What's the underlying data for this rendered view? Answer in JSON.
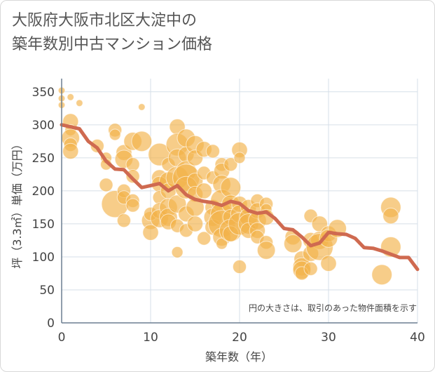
{
  "title": {
    "line1": "大阪府大阪市北区大淀中の",
    "line2": "築年数別中古マンション価格"
  },
  "chart_data": {
    "type": "scatter",
    "xlabel": "築年数（年）",
    "ylabel": "坪（3.3㎡）単価（万円）",
    "xlim": [
      0,
      40
    ],
    "ylim": [
      0,
      370
    ],
    "xticks": [
      0,
      10,
      20,
      30,
      40
    ],
    "yticks": [
      0,
      50,
      100,
      150,
      200,
      250,
      300,
      350
    ],
    "grid": true,
    "note": "円の大きさは、取引のあった物件面積を示す",
    "colors": {
      "bubble": "#f2b24a",
      "line": "#cf6a50",
      "axis": "#6b7f90",
      "grid": "#d6dfe8"
    },
    "points": [
      [
        0,
        352,
        1.5
      ],
      [
        0,
        340,
        1.5
      ],
      [
        0,
        330,
        1.5
      ],
      [
        1,
        342,
        1.5
      ],
      [
        2,
        333,
        1.5
      ],
      [
        1,
        305,
        3.5
      ],
      [
        1,
        292,
        2.5
      ],
      [
        1,
        280,
        4
      ],
      [
        1,
        270,
        3
      ],
      [
        1,
        260,
        3.5
      ],
      [
        4,
        268,
        3
      ],
      [
        5,
        250,
        2.5
      ],
      [
        5,
        240,
        2.5
      ],
      [
        5,
        209,
        3
      ],
      [
        6,
        292,
        3
      ],
      [
        6,
        285,
        2.5
      ],
      [
        6,
        180,
        6
      ],
      [
        7,
        258,
        3.5
      ],
      [
        7,
        248,
        4
      ],
      [
        7,
        200,
        3
      ],
      [
        7,
        190,
        3
      ],
      [
        7,
        155,
        3
      ],
      [
        8,
        275,
        4
      ],
      [
        8,
        240,
        3
      ],
      [
        8,
        222,
        3
      ],
      [
        8,
        185,
        3
      ],
      [
        8,
        178,
        3
      ],
      [
        9,
        275,
        4.5
      ],
      [
        9,
        327,
        1.5
      ],
      [
        10,
        155,
        4
      ],
      [
        10,
        165,
        3
      ],
      [
        10,
        137,
        3.5
      ],
      [
        11,
        255,
        5
      ],
      [
        11,
        220,
        3.5
      ],
      [
        11,
        210,
        3.5
      ],
      [
        11,
        190,
        3
      ],
      [
        11,
        170,
        3.5
      ],
      [
        11,
        158,
        4
      ],
      [
        12,
        240,
        3
      ],
      [
        12,
        215,
        4
      ],
      [
        12,
        200,
        3.5
      ],
      [
        12,
        175,
        4
      ],
      [
        12,
        160,
        4
      ],
      [
        12,
        153,
        3.5
      ],
      [
        13,
        297,
        3.5
      ],
      [
        13,
        270,
        5
      ],
      [
        13,
        250,
        4
      ],
      [
        13,
        220,
        5
      ],
      [
        13,
        180,
        4
      ],
      [
        13,
        147,
        3
      ],
      [
        13,
        107,
        2.5
      ],
      [
        14,
        280,
        4
      ],
      [
        14,
        255,
        3.5
      ],
      [
        14,
        230,
        4.5
      ],
      [
        14,
        220,
        6
      ],
      [
        14,
        205,
        5
      ],
      [
        14,
        165,
        3.5
      ],
      [
        14,
        140,
        3
      ],
      [
        15,
        270,
        4
      ],
      [
        15,
        250,
        3.5
      ],
      [
        15,
        215,
        3.5
      ],
      [
        15,
        195,
        3.5
      ],
      [
        15,
        175,
        4
      ],
      [
        15,
        150,
        3.5
      ],
      [
        16,
        263,
        3.5
      ],
      [
        16,
        227,
        3
      ],
      [
        16,
        200,
        3.5
      ],
      [
        16,
        128,
        3
      ],
      [
        17,
        260,
        3
      ],
      [
        17,
        220,
        3
      ],
      [
        17,
        175,
        3.5
      ],
      [
        17,
        160,
        4
      ],
      [
        17,
        145,
        3.5
      ],
      [
        18,
        240,
        3
      ],
      [
        18,
        230,
        3.5
      ],
      [
        18,
        210,
        4
      ],
      [
        18,
        185,
        5
      ],
      [
        18,
        165,
        5
      ],
      [
        18,
        150,
        6
      ],
      [
        18,
        130,
        4
      ],
      [
        18,
        120,
        2.5
      ],
      [
        19,
        240,
        3
      ],
      [
        19,
        205,
        4.5
      ],
      [
        19,
        180,
        4
      ],
      [
        19,
        160,
        3.5
      ],
      [
        19,
        140,
        5
      ],
      [
        19,
        135,
        3.5
      ],
      [
        20,
        262,
        3.5
      ],
      [
        20,
        250,
        2.5
      ],
      [
        20,
        180,
        3.5
      ],
      [
        20,
        165,
        4
      ],
      [
        20,
        150,
        5
      ],
      [
        20,
        85,
        3
      ],
      [
        21,
        175,
        3.5
      ],
      [
        21,
        160,
        4
      ],
      [
        21,
        150,
        4.5
      ],
      [
        21,
        140,
        3.5
      ],
      [
        22,
        185,
        3
      ],
      [
        22,
        170,
        3.5
      ],
      [
        22,
        155,
        4
      ],
      [
        22,
        140,
        3.5
      ],
      [
        22,
        130,
        3
      ],
      [
        23,
        180,
        3
      ],
      [
        23,
        172,
        2.5
      ],
      [
        23,
        160,
        3.5
      ],
      [
        23,
        122,
        3
      ],
      [
        23,
        110,
        4
      ],
      [
        26,
        130,
        3.5
      ],
      [
        26,
        120,
        4
      ],
      [
        27,
        97,
        3.5
      ],
      [
        27,
        85,
        4
      ],
      [
        27,
        80,
        4
      ],
      [
        27,
        75,
        3
      ],
      [
        28,
        162,
        3
      ],
      [
        28,
        125,
        3.5
      ],
      [
        28,
        105,
        3.5
      ],
      [
        28,
        82,
        3
      ],
      [
        29,
        150,
        3.5
      ],
      [
        29,
        125,
        4
      ],
      [
        29,
        115,
        6
      ],
      [
        30,
        135,
        3.5
      ],
      [
        30,
        128,
        4
      ],
      [
        30,
        90,
        3.5
      ],
      [
        31,
        143,
        4
      ],
      [
        36,
        73,
        4.5
      ],
      [
        37,
        175,
        4.5
      ],
      [
        37,
        162,
        3.5
      ],
      [
        37,
        115,
        4.5
      ]
    ],
    "series": [
      {
        "x": [
          0,
          1,
          2,
          3,
          4,
          5,
          6,
          7,
          8,
          9,
          10,
          11,
          12,
          13,
          14,
          15,
          16,
          17,
          18,
          19,
          20,
          21,
          22,
          23,
          24,
          25,
          26,
          27,
          28,
          29,
          30,
          31,
          32,
          33,
          34,
          35,
          36,
          37,
          38,
          39,
          40
        ],
        "y": [
          300,
          297,
          294,
          275,
          265,
          245,
          233,
          232,
          218,
          205,
          208,
          211,
          200,
          208,
          194,
          187,
          184,
          182,
          178,
          184,
          181,
          170,
          166,
          168,
          158,
          143,
          141,
          130,
          117,
          121,
          137,
          135,
          134,
          128,
          114,
          113,
          109,
          104,
          99,
          99,
          81
        ]
      }
    ]
  }
}
